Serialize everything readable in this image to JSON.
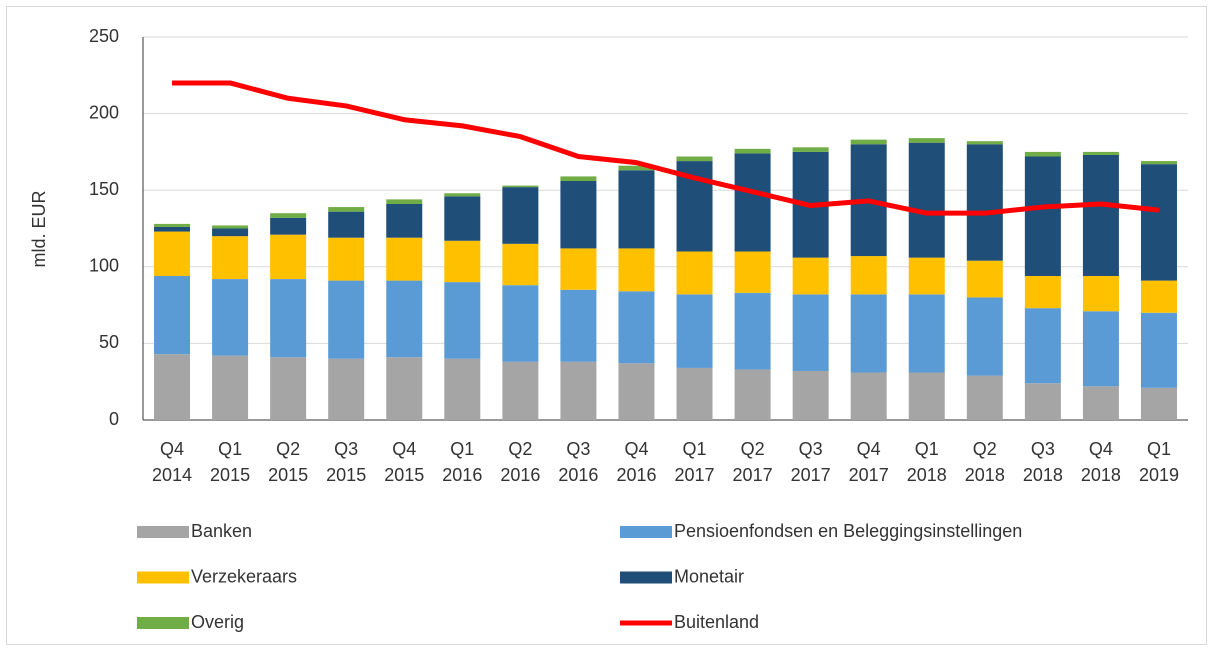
{
  "chart_data": {
    "type": "stacked-bar-line",
    "y_label": "mld. EUR",
    "categories": [
      "Q4 2014",
      "Q1 2015",
      "Q2 2015",
      "Q3 2015",
      "Q4 2015",
      "Q1 2016",
      "Q2 2016",
      "Q3 2016",
      "Q4 2016",
      "Q1 2017",
      "Q2 2017",
      "Q3 2017",
      "Q4 2017",
      "Q1 2018",
      "Q2 2018",
      "Q3 2018",
      "Q4 2018",
      "Q1 2019"
    ],
    "ylim": [
      0,
      250
    ],
    "yticks": [
      0,
      50,
      100,
      150,
      200,
      250
    ],
    "grid": true,
    "series": [
      {
        "name": "Banken",
        "color": "#a5a5a5",
        "kind": "bar",
        "values": [
          43,
          42,
          41,
          40,
          41,
          40,
          38,
          38,
          37,
          34,
          33,
          32,
          31,
          31,
          29,
          24,
          22,
          21
        ]
      },
      {
        "name": "Pensioenfondsen en Beleggingsinstellingen",
        "color": "#5b9bd5",
        "kind": "bar",
        "values": [
          51,
          50,
          51,
          51,
          50,
          50,
          50,
          47,
          47,
          48,
          50,
          50,
          51,
          51,
          51,
          49,
          49,
          49
        ]
      },
      {
        "name": "Verzekeraars",
        "color": "#ffc000",
        "kind": "bar",
        "values": [
          29,
          28,
          29,
          28,
          28,
          27,
          27,
          27,
          28,
          28,
          27,
          24,
          25,
          24,
          24,
          21,
          23,
          21
        ]
      },
      {
        "name": "Monetair",
        "color": "#1f4e79",
        "kind": "bar",
        "values": [
          3,
          5,
          11,
          17,
          22,
          29,
          37,
          44,
          51,
          59,
          64,
          69,
          73,
          75,
          76,
          78,
          79,
          76
        ]
      },
      {
        "name": "Overig",
        "color": "#70ad47",
        "kind": "bar",
        "values": [
          2,
          2,
          3,
          3,
          3,
          2,
          1,
          3,
          3,
          3,
          3,
          3,
          3,
          3,
          2,
          3,
          2,
          2
        ]
      },
      {
        "name": "Buitenland",
        "color": "#ff0000",
        "kind": "line",
        "values": [
          220,
          220,
          210,
          205,
          196,
          192,
          185,
          172,
          168,
          158,
          149,
          140,
          143,
          135,
          135,
          139,
          141,
          137
        ]
      }
    ]
  }
}
